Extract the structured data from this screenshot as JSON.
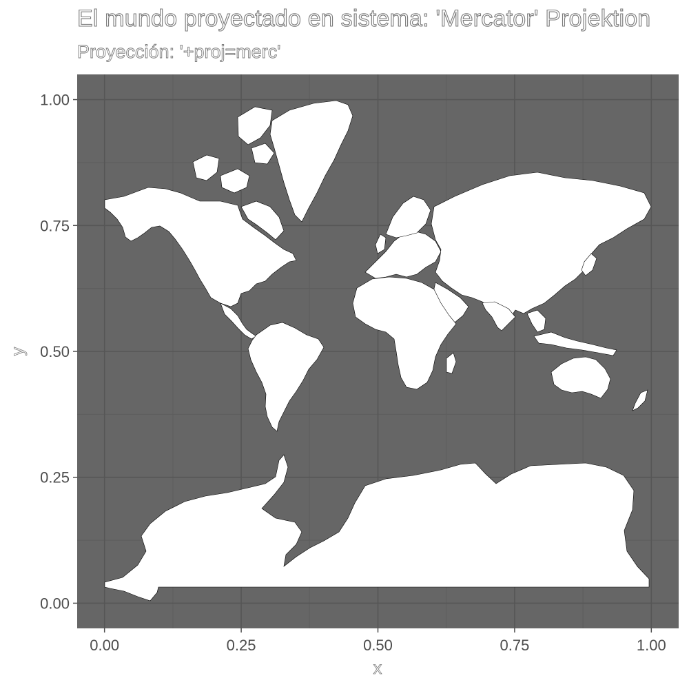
{
  "chart_data": {
    "type": "map",
    "title": "El mundo proyectado en sistema: 'Mercator' Projektion",
    "subtitle": "Proyección: '+proj=merc'",
    "xlabel": "x",
    "ylabel": "y",
    "xlim": [
      -0.05,
      1.05
    ],
    "ylim": [
      -0.05,
      1.05
    ],
    "x_ticks": [
      "0.00",
      "0.25",
      "0.50",
      "0.75",
      "1.00"
    ],
    "y_ticks": [
      "0.00",
      "0.25",
      "0.50",
      "0.75",
      "1.00"
    ],
    "grid": true,
    "panel_color": "#666666",
    "land_color": "#ffffff",
    "border_color": "#000000"
  }
}
